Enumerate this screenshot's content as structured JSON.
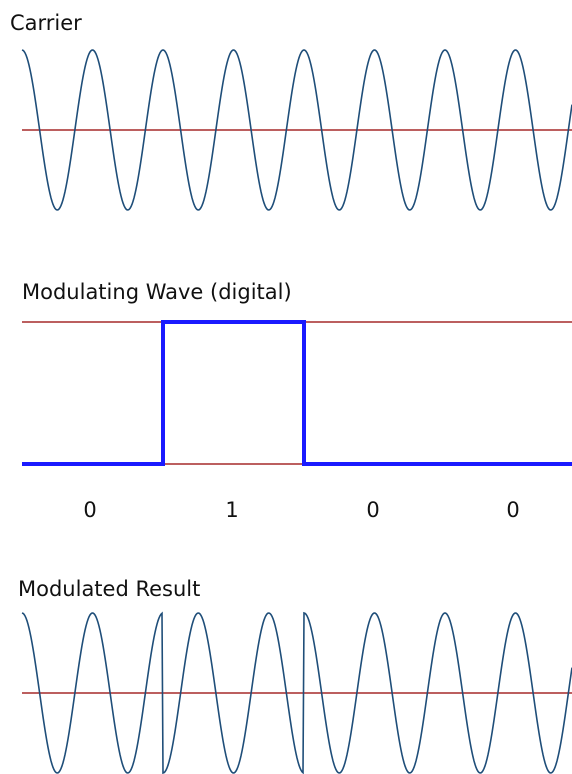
{
  "panels": {
    "carrier": {
      "title": "Carrier"
    },
    "modulating": {
      "title": "Modulating Wave (digital)",
      "bits": [
        "0",
        "1",
        "0",
        "0"
      ]
    },
    "result": {
      "title": "Modulated Result"
    }
  },
  "colors": {
    "wave": "#1f4e79",
    "baseline": "#a52a2a",
    "digital": "#1a1aff",
    "text": "#111111"
  }
}
